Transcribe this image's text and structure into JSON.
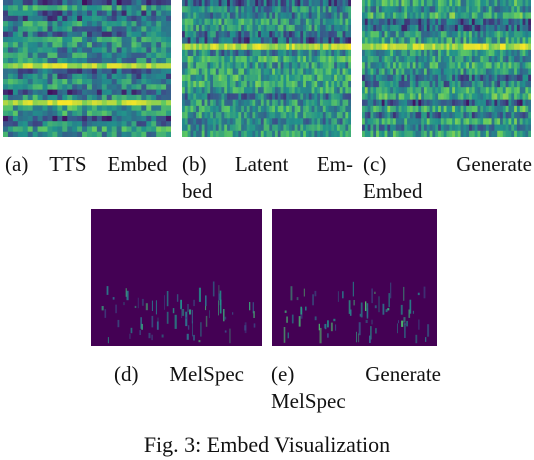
{
  "figure": {
    "caption": "Fig. 3: Embed Visualization",
    "colormap": [
      "#440154",
      "#3b528b",
      "#21918c",
      "#5ec962",
      "#fde725"
    ],
    "panels": [
      {
        "id": "a",
        "caption_lines": [
          [
            "(a)",
            "TTS",
            "Embed"
          ]
        ]
      },
      {
        "id": "b",
        "caption_lines": [
          [
            "(b)",
            "Latent",
            "Em-"
          ],
          [
            "bed"
          ]
        ]
      },
      {
        "id": "c",
        "caption_lines": [
          [
            "(c)",
            "Generate"
          ],
          [
            "Embed"
          ]
        ]
      },
      {
        "id": "d",
        "caption_lines": [
          [
            "(d)",
            "MelSpec"
          ]
        ]
      },
      {
        "id": "e",
        "caption_lines": [
          [
            "(e)",
            "Generate"
          ],
          [
            "MelSpec"
          ]
        ]
      }
    ]
  }
}
